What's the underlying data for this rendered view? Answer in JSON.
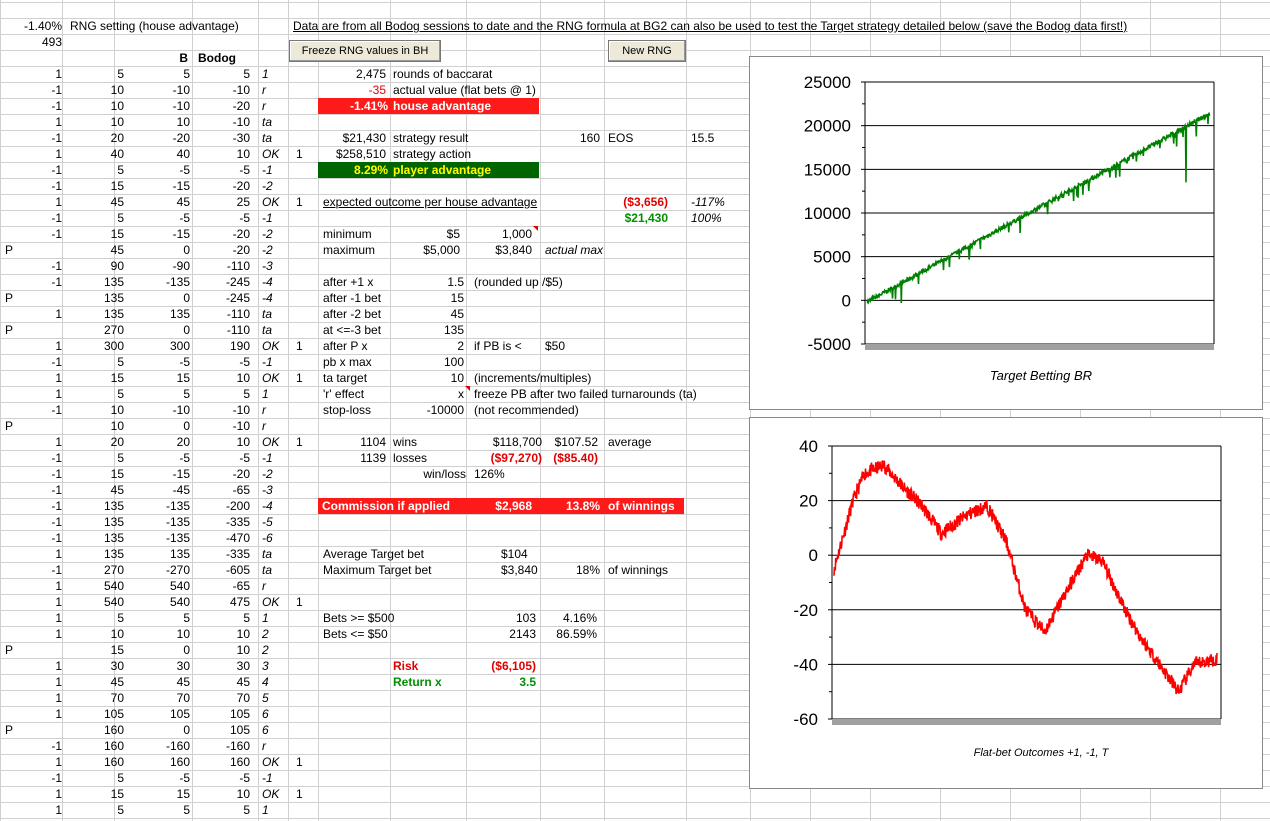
{
  "header": {
    "pct": "-1.40%",
    "rng_label": "RNG setting (house advantage)",
    "count": "493",
    "note": "Data are from all Bodog sessions to date and the RNG formula at BG2 can also be used to test the Target strategy detailed below (save the Bodog data first!)",
    "col_b": "B",
    "col_bodog": "Bodog"
  },
  "buttons": {
    "freeze": "Freeze RNG values in BH",
    "new_rng": "New RNG"
  },
  "rows": [
    [
      "1",
      "5",
      "5",
      "5",
      "1",
      ""
    ],
    [
      "-1",
      "10",
      "-10",
      "-10",
      "r",
      ""
    ],
    [
      "-1",
      "10",
      "-10",
      "-20",
      "r",
      ""
    ],
    [
      "1",
      "10",
      "10",
      "-10",
      "ta",
      ""
    ],
    [
      "-1",
      "20",
      "-20",
      "-30",
      "ta",
      ""
    ],
    [
      "1",
      "40",
      "40",
      "10",
      "OK",
      "1"
    ],
    [
      "-1",
      "5",
      "-5",
      "-5",
      "-1",
      ""
    ],
    [
      "-1",
      "15",
      "-15",
      "-20",
      "-2",
      ""
    ],
    [
      "1",
      "45",
      "45",
      "25",
      "OK",
      "1"
    ],
    [
      "-1",
      "5",
      "-5",
      "-5",
      "-1",
      ""
    ],
    [
      "-1",
      "15",
      "-15",
      "-20",
      "-2",
      ""
    ],
    [
      "P",
      "45",
      "0",
      "-20",
      "-2",
      ""
    ],
    [
      "-1",
      "90",
      "-90",
      "-110",
      "-3",
      ""
    ],
    [
      "-1",
      "135",
      "-135",
      "-245",
      "-4",
      ""
    ],
    [
      "P",
      "135",
      "0",
      "-245",
      "-4",
      ""
    ],
    [
      "1",
      "135",
      "135",
      "-110",
      "ta",
      ""
    ],
    [
      "P",
      "270",
      "0",
      "-110",
      "ta",
      ""
    ],
    [
      "1",
      "300",
      "300",
      "190",
      "OK",
      "1"
    ],
    [
      "-1",
      "5",
      "-5",
      "-5",
      "-1",
      ""
    ],
    [
      "1",
      "15",
      "15",
      "10",
      "OK",
      "1"
    ],
    [
      "1",
      "5",
      "5",
      "5",
      "1",
      ""
    ],
    [
      "-1",
      "10",
      "-10",
      "-10",
      "r",
      ""
    ],
    [
      "P",
      "10",
      "0",
      "-10",
      "r",
      ""
    ],
    [
      "1",
      "20",
      "20",
      "10",
      "OK",
      "1"
    ],
    [
      "-1",
      "5",
      "-5",
      "-5",
      "-1",
      ""
    ],
    [
      "-1",
      "15",
      "-15",
      "-20",
      "-2",
      ""
    ],
    [
      "-1",
      "45",
      "-45",
      "-65",
      "-3",
      ""
    ],
    [
      "-1",
      "135",
      "-135",
      "-200",
      "-4",
      ""
    ],
    [
      "-1",
      "135",
      "-135",
      "-335",
      "-5",
      ""
    ],
    [
      "-1",
      "135",
      "-135",
      "-470",
      "-6",
      ""
    ],
    [
      "1",
      "135",
      "135",
      "-335",
      "ta",
      ""
    ],
    [
      "-1",
      "270",
      "-270",
      "-605",
      "ta",
      ""
    ],
    [
      "1",
      "540",
      "540",
      "-65",
      "r",
      ""
    ],
    [
      "1",
      "540",
      "540",
      "475",
      "OK",
      "1"
    ],
    [
      "1",
      "5",
      "5",
      "5",
      "1",
      ""
    ],
    [
      "1",
      "10",
      "10",
      "10",
      "2",
      ""
    ],
    [
      "P",
      "15",
      "0",
      "10",
      "2",
      ""
    ],
    [
      "1",
      "30",
      "30",
      "30",
      "3",
      ""
    ],
    [
      "1",
      "45",
      "45",
      "45",
      "4",
      ""
    ],
    [
      "1",
      "70",
      "70",
      "70",
      "5",
      ""
    ],
    [
      "1",
      "105",
      "105",
      "105",
      "6",
      ""
    ],
    [
      "P",
      "160",
      "0",
      "105",
      "6",
      ""
    ],
    [
      "-1",
      "160",
      "-160",
      "-160",
      "r",
      ""
    ],
    [
      "1",
      "160",
      "160",
      "160",
      "OK",
      "1"
    ],
    [
      "-1",
      "5",
      "-5",
      "-5",
      "-1",
      ""
    ],
    [
      "1",
      "15",
      "15",
      "10",
      "OK",
      "1"
    ],
    [
      "1",
      "5",
      "5",
      "5",
      "1",
      ""
    ]
  ],
  "stats": {
    "rounds_val": "2,475",
    "rounds_lbl": "rounds of baccarat",
    "actual_val": "-35",
    "actual_lbl": "actual value (flat bets @ 1)",
    "ha_val": "-1.41%",
    "ha_lbl": "house advantage",
    "sr_val": "$21,430",
    "sr_lbl": "strategy result",
    "eos_num": "160",
    "eos_lbl": "EOS",
    "eos_val": "15.5",
    "sa_val": "$258,510",
    "sa_lbl": "strategy action",
    "pa_val": "8.29%",
    "pa_lbl": "player advantage",
    "eo_lbl": "expected outcome per house advantage",
    "eo_val": "($3,656)",
    "eo_pct": "-117%",
    "eo_val2": "$21,430",
    "eo_pct2": "100%",
    "min_lbl": "minimum",
    "min_val": "$5",
    "min_val2": "1,000",
    "max_lbl": "maximum",
    "max_val": "$5,000",
    "max_val2": "$3,840",
    "max_note": "actual max",
    "a1_lbl": "after +1 x",
    "a1_val": "1.5",
    "a1_note": "(rounded up /$5)",
    "am1_lbl": "after -1 bet",
    "am1_val": "15",
    "am2_lbl": "after -2 bet",
    "am2_val": "45",
    "am3_lbl": "at <=-3 bet",
    "am3_val": "135",
    "ap_lbl": "after P x",
    "ap_val": "2",
    "ap_note": "if PB is <",
    "ap_note2": "$50",
    "pb_lbl": "pb x max",
    "pb_val": "100",
    "ta_lbl": "ta target",
    "ta_val": "10",
    "ta_note": "(increments/multiples)",
    "re_lbl": "'r' effect",
    "re_val": "x",
    "re_note": "freeze PB after two failed turnarounds (ta)",
    "sl_lbl": "stop-loss",
    "sl_val": "-10000",
    "sl_note": "(not recommended)",
    "wins_n": "1104",
    "wins_lbl": "wins",
    "wins_v1": "$118,700",
    "wins_v2": "$107.52",
    "wins_note": "average",
    "loss_n": "1139",
    "loss_lbl": "losses",
    "loss_v1": "($97,270)",
    "loss_v2": "($85.40)",
    "wl_lbl": "win/loss",
    "wl_val": "126%",
    "com_lbl": "Commission if applied",
    "com_val": "$2,968",
    "com_pct": "13.8%",
    "com_note": "of winnings",
    "avg_lbl": "Average Target bet",
    "avg_val": "$104",
    "mx_lbl": "Maximum Target bet",
    "mx_val": "$3,840",
    "mx_pct": "18%",
    "mx_note": "of winnings",
    "b500_lbl": "Bets >= $500",
    "b500_n": "103",
    "b500_pct": "4.16%",
    "b50_lbl": "Bets <= $50",
    "b50_n": "2143",
    "b50_pct": "86.59%",
    "risk_lbl": "Risk",
    "risk_val": "($6,105)",
    "ret_lbl": "Return x",
    "ret_val": "3.5"
  },
  "charts": {
    "top": {
      "caption": "Target Betting BR",
      "ticks": [
        "25000",
        "20000",
        "15000",
        "10000",
        "5000",
        "0",
        "-5000"
      ],
      "color": "#008000"
    },
    "bottom": {
      "caption": "Flat-bet Outcomes +1, -1, T",
      "ticks": [
        "40",
        "20",
        "0",
        "-20",
        "-40",
        "-60"
      ],
      "color": "#ff0000"
    }
  }
}
